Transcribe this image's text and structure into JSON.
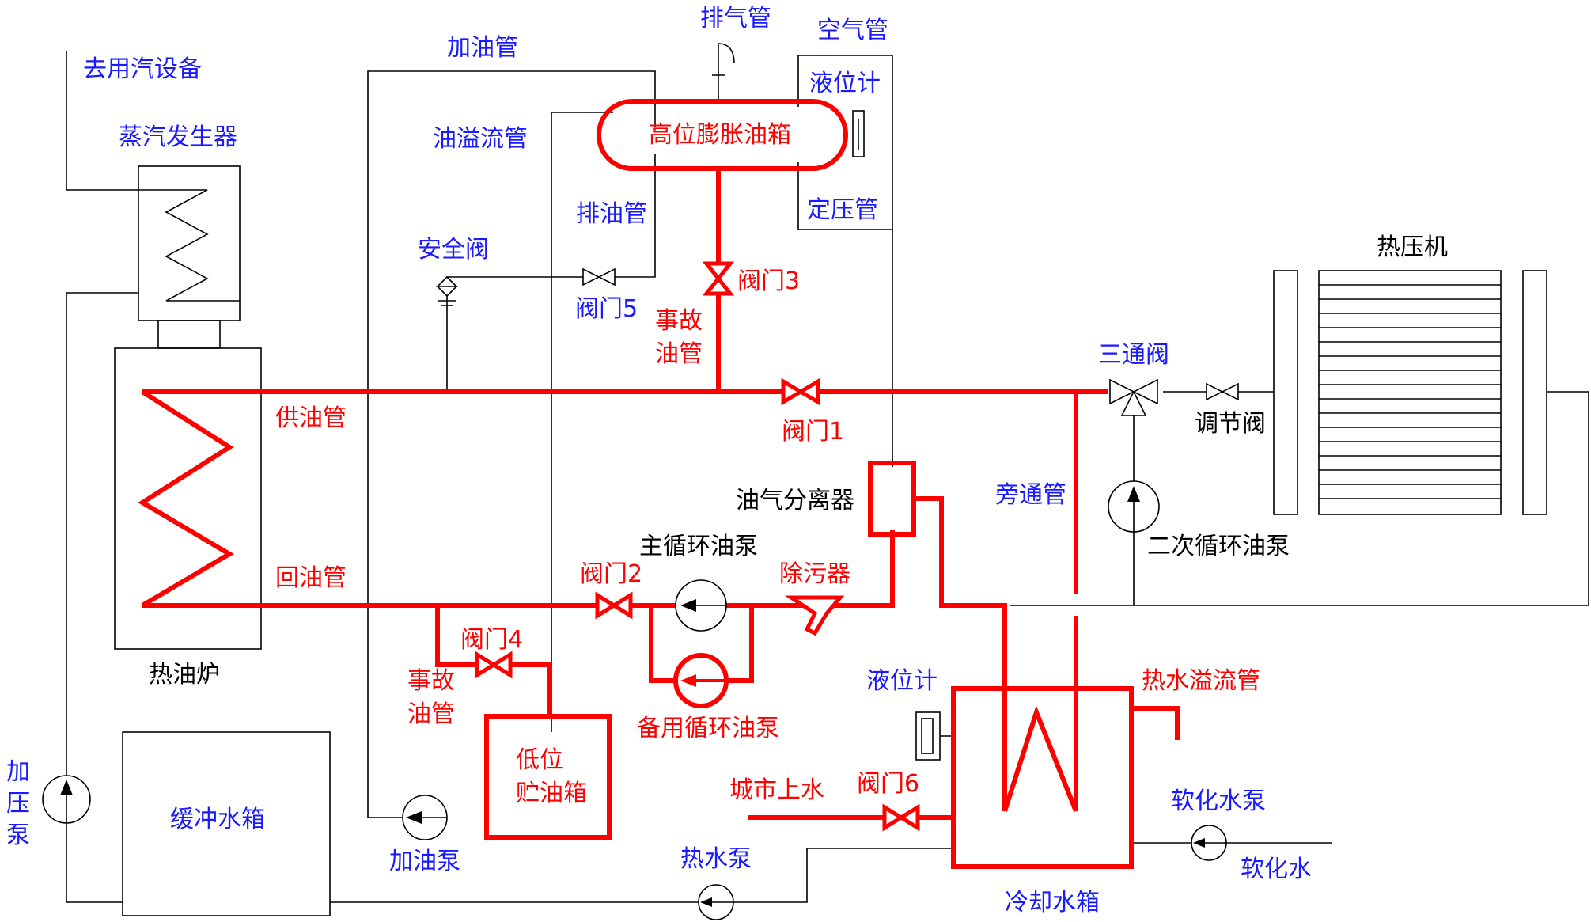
{
  "colors": {
    "oil_line": "#ff0000",
    "water_line": "#000000",
    "blue_text": "#1a1aff",
    "black_text": "#000000"
  },
  "labels": {
    "steam_to_equipment": "去用汽设备",
    "steam_generator": "蒸汽发生器",
    "fill_pipe": "加油管",
    "vent_pipe": "排气管",
    "air_pipe": "空气管",
    "level_gauge_top": "液位计",
    "expansion_tank": "高位膨胀油箱",
    "overflow_pipe": "油溢流管",
    "drain_pipe": "排油管",
    "pressure_pipe": "定压管",
    "safety_valve": "安全阀",
    "valve3": "阀门3",
    "valve5": "阀门5",
    "emergency_pipe_top": "事故\n油管",
    "hot_press": "热压机",
    "three_way_valve": "三通阀",
    "supply_pipe": "供油管",
    "valve1": "阀门1",
    "regulating_valve": "调节阀",
    "oil_gas_separator": "油气分离器",
    "bypass_pipe": "旁通管",
    "secondary_pump": "二次循环油泵",
    "main_pump": "主循环油泵",
    "return_pipe": "回油管",
    "valve2": "阀门2",
    "strainer": "除污器",
    "valve4": "阀门4",
    "emergency_pipe_bottom": "事故\n油管",
    "backup_pump": "备用循环油泵",
    "level_gauge_bottom": "液位计",
    "hot_water_overflow": "热水溢流管",
    "low_tank": "低位\n贮油箱",
    "furnace": "热油炉",
    "booster_pump": "加\n压\n泵",
    "buffer_tank": "缓冲水箱",
    "fill_pump": "加油泵",
    "city_water": "城市上水",
    "valve6": "阀门6",
    "softened_pump": "软化水泵",
    "hot_water_pump": "热水泵",
    "softened_water": "软化水",
    "cooling_tank": "冷却水箱"
  }
}
